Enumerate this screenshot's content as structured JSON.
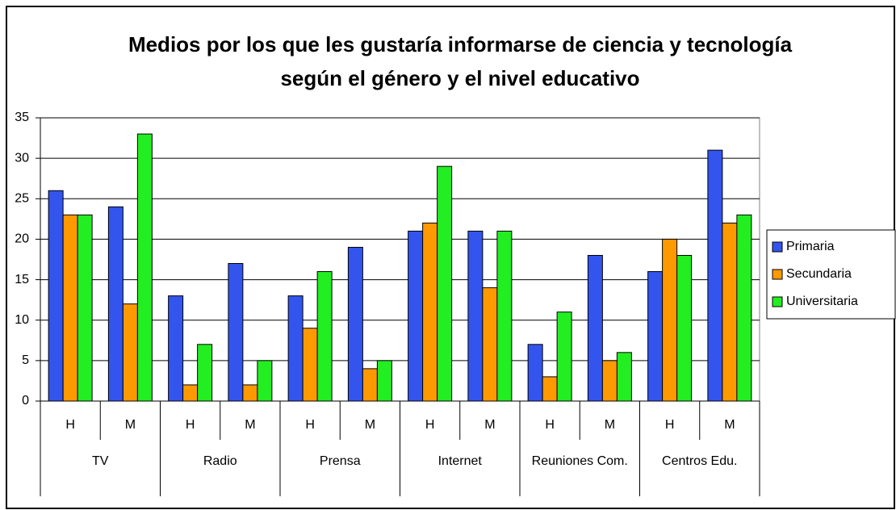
{
  "chart_data": {
    "type": "bar",
    "title": "Medios por los que les gustaría informarse de ciencia y tecnología según el género y el nivel educativo",
    "categories": [
      "H",
      "M",
      "H",
      "M",
      "H",
      "M",
      "H",
      "M",
      "H",
      "M",
      "H",
      "M"
    ],
    "groups": [
      "TV",
      "Radio",
      "Prensa",
      "Internet",
      "Reuniones Com.",
      "Centros Edu."
    ],
    "series": [
      {
        "name": "Primaria",
        "color": "#3355ee",
        "values": [
          26,
          24,
          13,
          17,
          13,
          19,
          21,
          21,
          7,
          18,
          16,
          31
        ]
      },
      {
        "name": "Secundaria",
        "color": "#ff9900",
        "values": [
          23,
          12,
          2,
          2,
          9,
          4,
          22,
          14,
          3,
          5,
          20,
          22
        ]
      },
      {
        "name": "Universitaria",
        "color": "#22ee22",
        "values": [
          23,
          33,
          7,
          5,
          16,
          5,
          29,
          21,
          11,
          6,
          18,
          23
        ]
      }
    ],
    "ylim": [
      0,
      35
    ],
    "yticks": [
      0,
      5,
      10,
      15,
      20,
      25,
      30,
      35
    ],
    "grid": true,
    "legend": "right"
  }
}
